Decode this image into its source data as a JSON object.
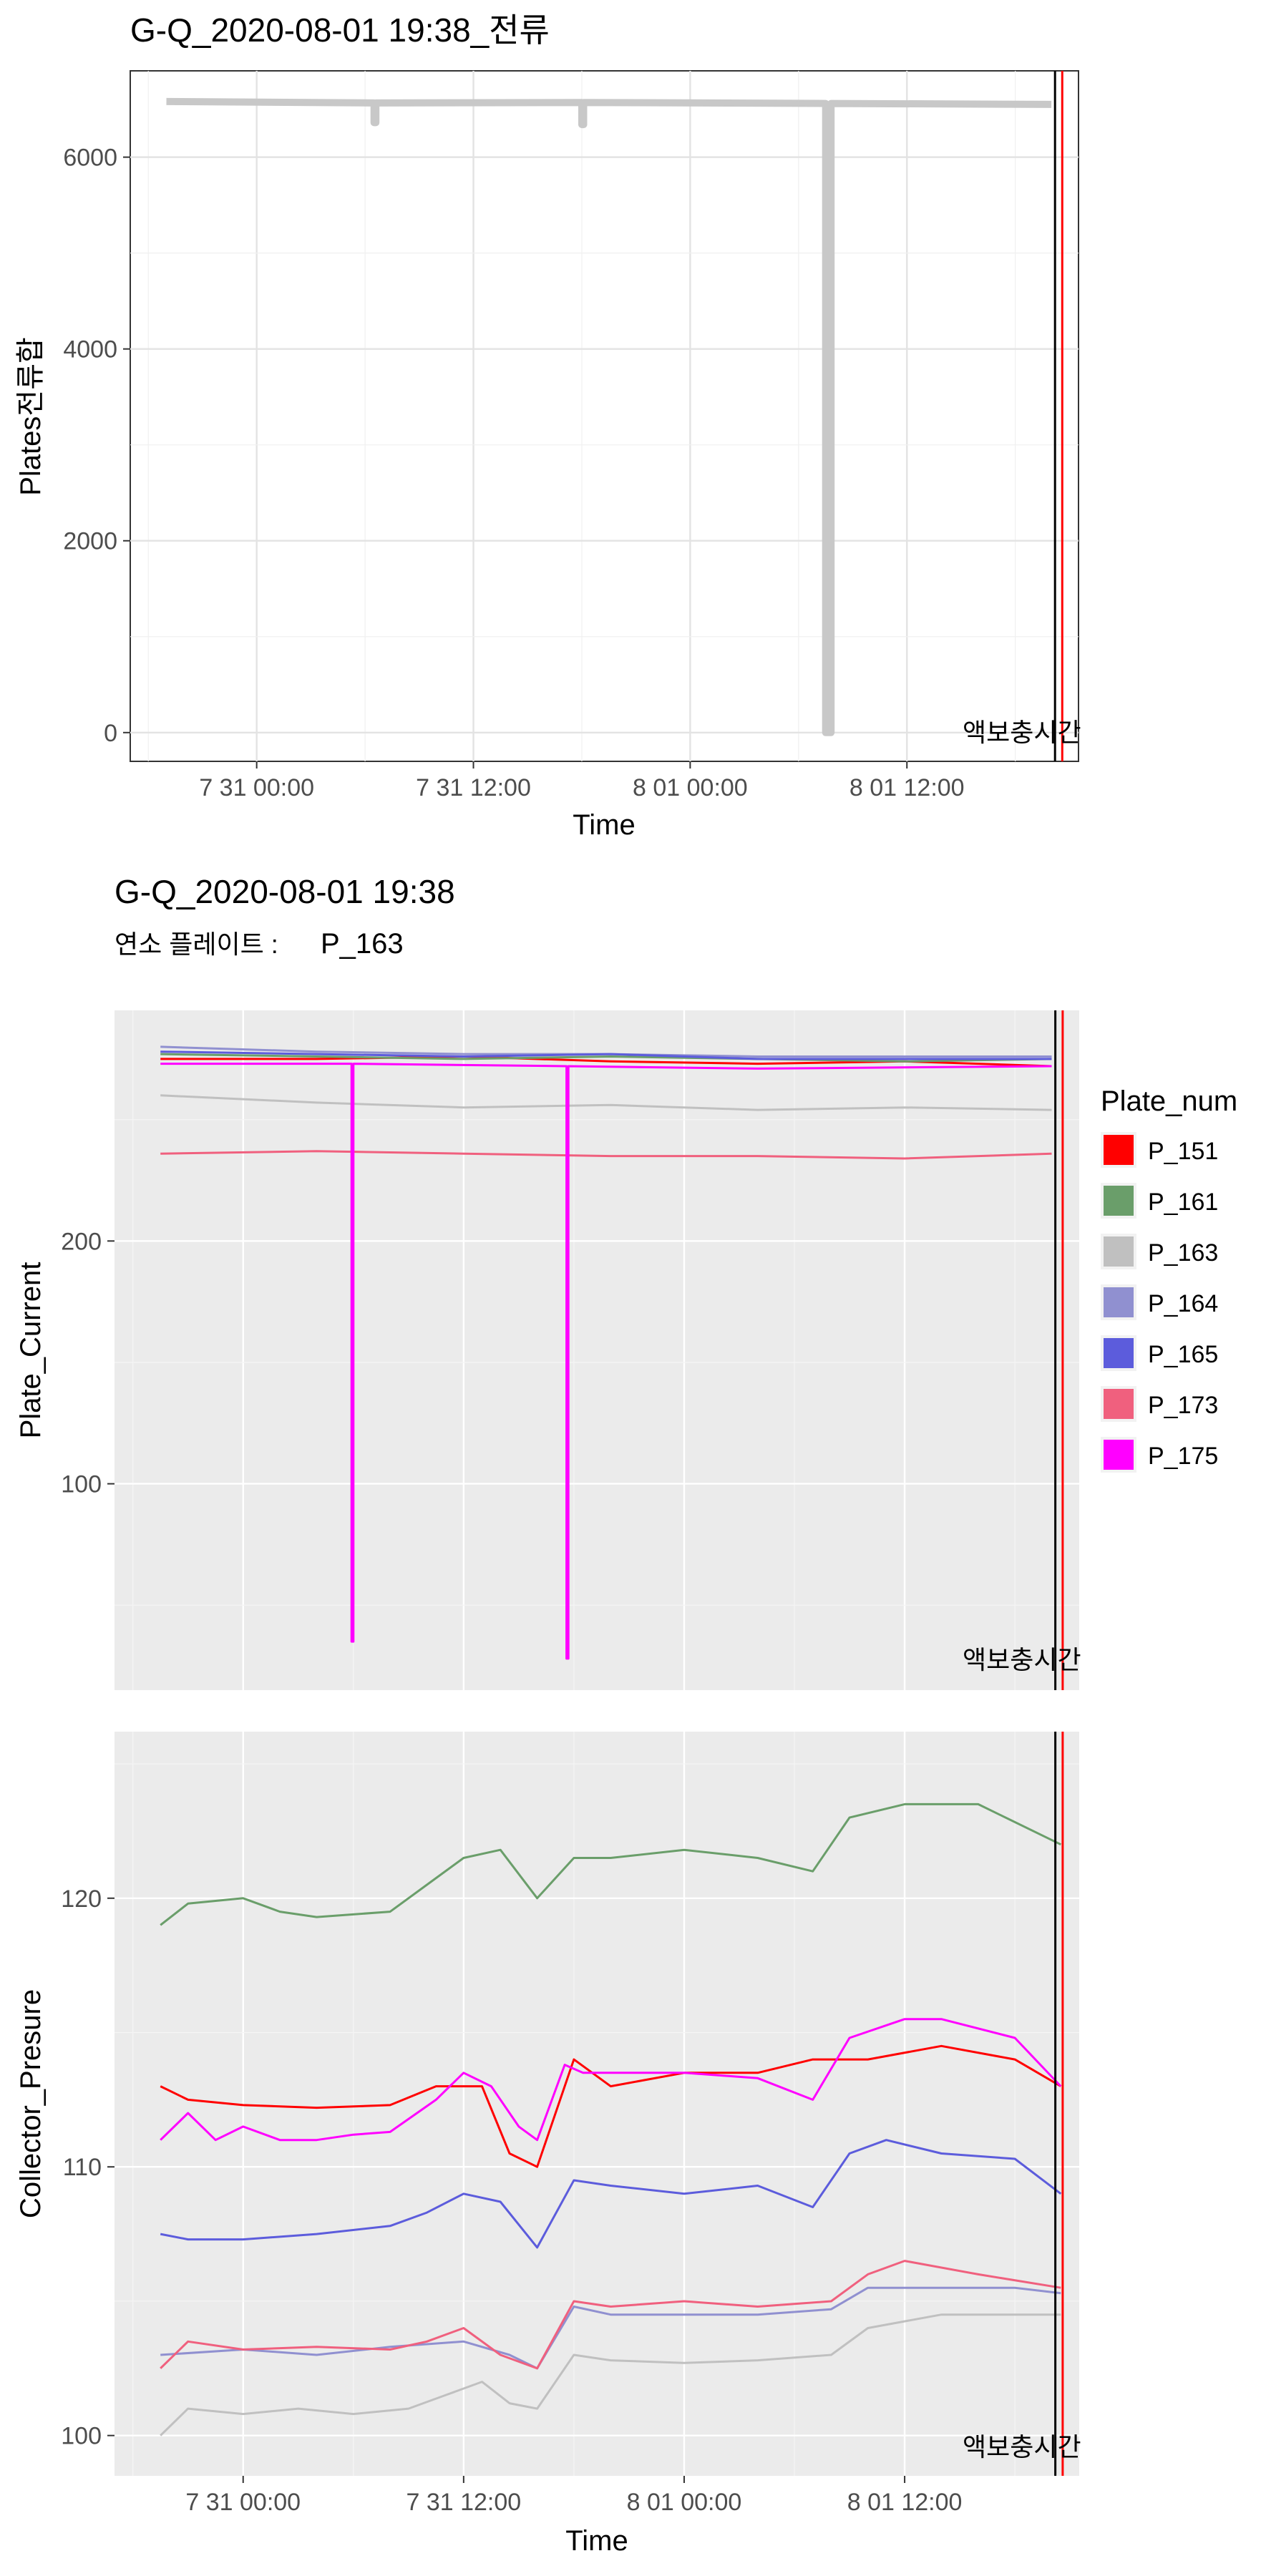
{
  "top_chart": {
    "title": "G-Q_2020-08-01 19:38_전류",
    "xlabel": "Time",
    "ylabel": "Plates전류합",
    "x_ticks": [
      "7 31 00:00",
      "7 31 12:00",
      "8 01 00:00",
      "8 01 12:00"
    ],
    "y_ticks": [
      "0",
      "2000",
      "4000",
      "6000"
    ],
    "annotation": "액보충시간"
  },
  "bottom_chart": {
    "title": "G-Q_2020-08-01 19:38",
    "subtitle_prefix": "연소 플레이트 : ",
    "subtitle_plate": "P_163",
    "xlabel": "Time",
    "annotation": "액보충시간",
    "legend_title": "Plate_num",
    "current_panel": {
      "ylabel": "Plate_Current",
      "y_ticks": [
        "100",
        "200"
      ]
    },
    "pressure_panel": {
      "ylabel": "Collector_Presure",
      "y_ticks": [
        "100",
        "110",
        "120"
      ]
    },
    "x_ticks": [
      "7 31 00:00",
      "7 31 12:00",
      "8 01 00:00",
      "8 01 12:00"
    ]
  },
  "chart_data": [
    {
      "type": "line",
      "title": "G-Q_2020-08-01 19:38_전류",
      "xlabel": "Time",
      "ylabel": "Plates전류합",
      "x_unit": "hours since 7 31 00:00",
      "xlim": [
        -7,
        45.5
      ],
      "ylim": [
        -300,
        6900
      ],
      "grid": true,
      "series": [
        {
          "color": "#c8c8c8",
          "x": [
            -5,
            6.5,
            6.5,
            6.6,
            6.6,
            18.0,
            18.0,
            18.1,
            18.1,
            31.5,
            31.5,
            31.8,
            31.8,
            44.0
          ],
          "y": [
            6580,
            6565,
            6360,
            6360,
            6565,
            6570,
            6340,
            6340,
            6570,
            6560,
            0,
            0,
            6560,
            6550
          ]
        }
      ],
      "vlines": [
        {
          "x": 44.2,
          "color": "#000000"
        },
        {
          "x": 44.6,
          "color": "#ff0000"
        }
      ],
      "annotations": [
        "액보충시간"
      ]
    },
    {
      "type": "line",
      "title": "G-Q_2020-08-01 19:38",
      "subtitle": "연소 플레이트 : P_163",
      "xlabel": "Time",
      "ylabel": "Plate_Current",
      "x_unit": "hours since 7 31 00:00",
      "xlim": [
        -7,
        45.5
      ],
      "ylim": [
        15,
        295
      ],
      "legend_title": "Plate_num",
      "legend_position": "right",
      "series": [
        {
          "name": "P_151",
          "color": "#ff0000",
          "x": [
            -4.5,
            4,
            12,
            20,
            28,
            36,
            44
          ],
          "y": [
            275,
            275,
            276,
            274,
            273,
            274,
            272
          ]
        },
        {
          "name": "P_161",
          "color": "#6a9e6a",
          "x": [
            -4.5,
            4,
            12,
            20,
            28,
            36,
            44
          ],
          "y": [
            277,
            276,
            275,
            276,
            275,
            274,
            275
          ]
        },
        {
          "name": "P_163",
          "color": "#c0c0c0",
          "x": [
            -4.5,
            4,
            12,
            20,
            28,
            36,
            44
          ],
          "y": [
            260,
            257,
            255,
            256,
            254,
            255,
            254
          ]
        },
        {
          "name": "P_164",
          "color": "#9090d0",
          "x": [
            -4.5,
            4,
            12,
            20,
            28,
            36,
            44
          ],
          "y": [
            280,
            278,
            277,
            277,
            276,
            276,
            276
          ]
        },
        {
          "name": "P_165",
          "color": "#5c5cdc",
          "x": [
            -4.5,
            4,
            12,
            20,
            28,
            36,
            44
          ],
          "y": [
            278,
            277,
            276,
            277,
            275,
            275,
            275
          ]
        },
        {
          "name": "P_173",
          "color": "#f0607e",
          "x": [
            -4.5,
            4,
            12,
            20,
            28,
            36,
            44
          ],
          "y": [
            236,
            237,
            236,
            235,
            235,
            234,
            236
          ]
        },
        {
          "name": "P_175",
          "color": "#ff00ff",
          "x": [
            -4.5,
            5.9,
            5.9,
            6.0,
            6.0,
            17.6,
            17.6,
            17.7,
            17.7,
            28,
            44
          ],
          "y": [
            273,
            273,
            35,
            35,
            273,
            272,
            28,
            28,
            272,
            271,
            272
          ]
        }
      ],
      "vlines": [
        {
          "x": 44.2,
          "color": "#000000"
        },
        {
          "x": 44.6,
          "color": "#ff0000"
        }
      ],
      "annotations": [
        "액보충시간"
      ]
    },
    {
      "type": "line",
      "xlabel": "Time",
      "ylabel": "Collector_Presure",
      "x_unit": "hours since 7 31 00:00",
      "xlim": [
        -7,
        45.5
      ],
      "ylim": [
        98.5,
        126.2
      ],
      "series": [
        {
          "name": "P_151",
          "color": "#ff0000",
          "x": [
            -4.5,
            -3,
            0,
            4,
            8,
            10.5,
            13,
            14.5,
            16,
            18,
            20,
            24,
            28,
            31,
            34,
            38,
            42,
            44.5
          ],
          "y": [
            113,
            112.5,
            112.3,
            112.2,
            112.3,
            113,
            113,
            110.5,
            110,
            114,
            113,
            113.5,
            113.5,
            114,
            114,
            114.5,
            114,
            113
          ]
        },
        {
          "name": "P_161",
          "color": "#6a9e6a",
          "x": [
            -4.5,
            -3,
            0,
            2,
            4,
            8,
            10,
            12,
            14,
            16,
            18,
            20,
            24,
            28,
            31,
            33,
            36,
            40,
            44.5
          ],
          "y": [
            119,
            119.8,
            120,
            119.5,
            119.3,
            119.5,
            120.5,
            121.5,
            121.8,
            120,
            121.5,
            121.5,
            121.8,
            121.5,
            121,
            123,
            123.5,
            123.5,
            122
          ]
        },
        {
          "name": "P_163",
          "color": "#c0c0c0",
          "x": [
            -4.5,
            -3,
            0,
            3,
            6,
            9,
            11,
            13,
            14.5,
            16,
            18,
            20,
            24,
            28,
            32,
            34,
            38,
            42,
            44.5
          ],
          "y": [
            100,
            101,
            100.8,
            101,
            100.8,
            101,
            101.5,
            102,
            101.2,
            101,
            103,
            102.8,
            102.7,
            102.8,
            103,
            104,
            104.5,
            104.5,
            104.5
          ]
        },
        {
          "name": "P_164",
          "color": "#9090d0",
          "x": [
            -4.5,
            0,
            4,
            8,
            12,
            14.5,
            16,
            18,
            20,
            24,
            28,
            32,
            34,
            38,
            42,
            44.5
          ],
          "y": [
            103,
            103.2,
            103,
            103.3,
            103.5,
            103,
            102.5,
            104.8,
            104.5,
            104.5,
            104.5,
            104.7,
            105.5,
            105.5,
            105.5,
            105.3
          ]
        },
        {
          "name": "P_165",
          "color": "#5c5cdc",
          "x": [
            -4.5,
            -3,
            0,
            4,
            8,
            10,
            12,
            14,
            16,
            18,
            20,
            24,
            28,
            31,
            33,
            35,
            38,
            42,
            44.5
          ],
          "y": [
            107.5,
            107.3,
            107.3,
            107.5,
            107.8,
            108.3,
            109,
            108.7,
            107,
            109.5,
            109.3,
            109,
            109.3,
            108.5,
            110.5,
            111,
            110.5,
            110.3,
            109
          ]
        },
        {
          "name": "P_173",
          "color": "#f0607e",
          "x": [
            -4.5,
            -3,
            0,
            4,
            8,
            10,
            12,
            14,
            16,
            18,
            20,
            24,
            28,
            32,
            34,
            36,
            40,
            44.5
          ],
          "y": [
            102.5,
            103.5,
            103.2,
            103.3,
            103.2,
            103.5,
            104,
            103,
            102.5,
            105,
            104.8,
            105,
            104.8,
            105,
            106,
            106.5,
            106,
            105.5
          ]
        },
        {
          "name": "P_175",
          "color": "#ff00ff",
          "x": [
            -4.5,
            -3,
            -1.5,
            0,
            2,
            4,
            6,
            8,
            10.5,
            12,
            13.5,
            15,
            16,
            17.5,
            18.5,
            20,
            24,
            28,
            31,
            33,
            36,
            38,
            42,
            44.5
          ],
          "y": [
            111,
            112,
            111,
            111.5,
            111,
            111,
            111.2,
            111.3,
            112.5,
            113.5,
            113,
            111.5,
            111,
            113.8,
            113.5,
            113.5,
            113.5,
            113.3,
            112.5,
            114.8,
            115.5,
            115.5,
            114.8,
            113
          ]
        }
      ],
      "vlines": [
        {
          "x": 44.2,
          "color": "#000000"
        },
        {
          "x": 44.6,
          "color": "#ff0000"
        }
      ],
      "annotations": [
        "액보충시간"
      ]
    }
  ]
}
